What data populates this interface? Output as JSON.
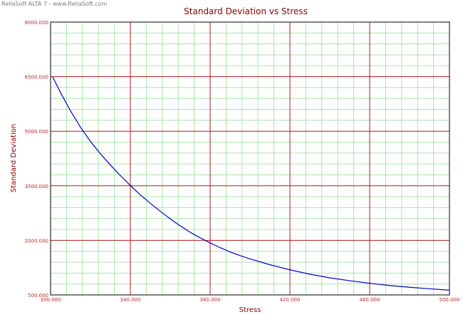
{
  "watermark": "ReliaSoft ALTA 7 - www.ReliaSoft.com",
  "colors": {
    "major_grid": "#b01818",
    "minor_grid": "#a8e6a8",
    "curve": "#0000c8",
    "title": "#8b0000",
    "axis_label": "#8b0000",
    "tick_label": "#b03030"
  },
  "chart_data": {
    "type": "line",
    "title": "Standard Deviation vs Stress",
    "xlabel": "Stress",
    "ylabel": "Standard Deviation",
    "xlim": [
      300,
      500
    ],
    "ylim": [
      500,
      8000
    ],
    "x_ticks": [
      300,
      340,
      380,
      420,
      460,
      500
    ],
    "x_tick_labels": [
      "300.000",
      "340.000",
      "380.000",
      "420.000",
      "460.000",
      "500.000"
    ],
    "y_ticks": [
      500,
      2000,
      3500,
      5000,
      6500,
      8000
    ],
    "y_tick_labels": [
      "500.000",
      "2000.000",
      "3500.000",
      "5000.000",
      "6500.000",
      "8000.000"
    ],
    "grid": true,
    "minor_subdivisions": 5,
    "series": [
      {
        "x": [
          301,
          305,
          310,
          315,
          320,
          325,
          330,
          335,
          340,
          345,
          350,
          355,
          360,
          365,
          370,
          375,
          380,
          385,
          390,
          395,
          400,
          410,
          420,
          430,
          440,
          450,
          460,
          470,
          480,
          490,
          500
        ],
        "y": [
          6500,
          6060,
          5560,
          5110,
          4720,
          4380,
          4070,
          3780,
          3510,
          3250,
          3020,
          2800,
          2590,
          2400,
          2220,
          2070,
          1930,
          1800,
          1680,
          1580,
          1490,
          1330,
          1190,
          1070,
          970,
          890,
          820,
          760,
          710,
          670,
          630
        ]
      }
    ]
  }
}
